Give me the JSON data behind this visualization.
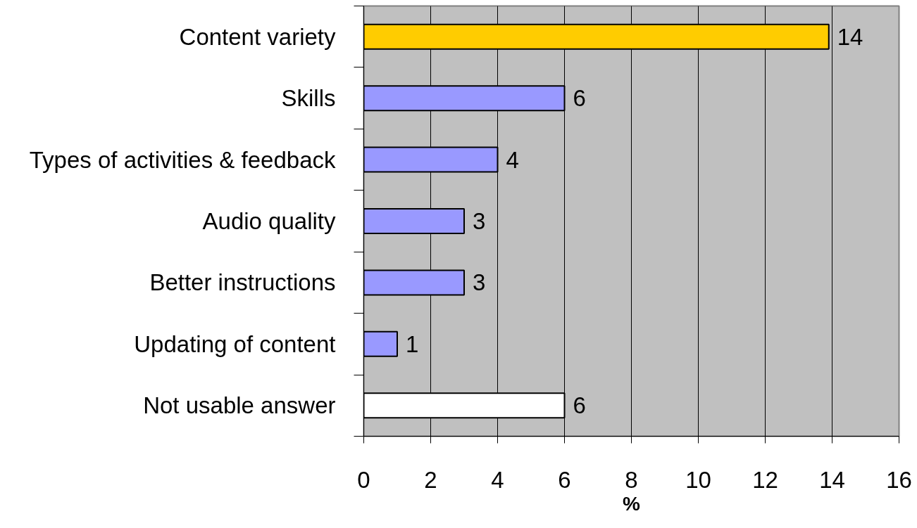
{
  "chart_data": {
    "type": "bar",
    "orientation": "horizontal",
    "xlabel": "%",
    "categories": [
      "Content variety",
      "Skills",
      "Types of activities & feedback",
      "Audio quality",
      "Better instructions",
      "Updating of content",
      "Not usable answer"
    ],
    "values": [
      13.9,
      6,
      4,
      3,
      3,
      1,
      6
    ],
    "colors": [
      "#ffcc00",
      "#9999ff",
      "#9999ff",
      "#9999ff",
      "#9999ff",
      "#9999ff",
      "#ffffff"
    ],
    "value_labels": [
      "14",
      "6",
      "4",
      "3",
      "3",
      "1",
      "6"
    ],
    "xlim": [
      0,
      16
    ],
    "xticks": [
      0,
      2,
      4,
      6,
      8,
      10,
      12,
      14,
      16
    ],
    "grid": "x"
  }
}
